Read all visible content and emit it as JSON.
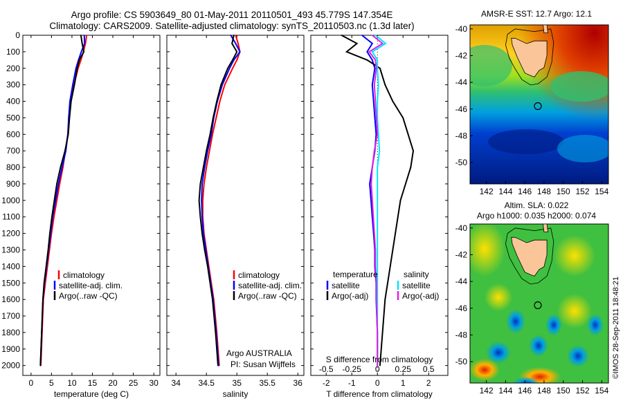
{
  "title_line1": "Argo profile: CS 5903649_80 01-May-2011 20110501_493 45.779S 147.354E",
  "title_line2": "Climatology: CARS2009. Satellite-adjusted climatology: synTS_20110503.nc (1.3d later)",
  "colors": {
    "climatology": "#ff0000",
    "satellite": "#0000ff",
    "argo": "#000000",
    "satellite_s": "#00e5ff",
    "argo_s": "#e020e0"
  },
  "chart_data": [
    {
      "type": "line",
      "xlabel": "temperature (deg C)",
      "ylabel": "",
      "xlim": [
        -2,
        31.5
      ],
      "ylim": [
        2060,
        0
      ],
      "xticks": [
        0,
        5,
        10,
        15,
        20,
        25,
        30
      ],
      "yticks": [
        0,
        100,
        200,
        300,
        400,
        500,
        600,
        700,
        800,
        900,
        1000,
        1100,
        1200,
        1300,
        1400,
        1500,
        1600,
        1700,
        1800,
        1900,
        2000
      ],
      "legend": {
        "placement": "lower-middle",
        "entries": [
          "climatology",
          "satellite-adj. clim.",
          "Argo(..raw -QC)"
        ]
      },
      "series": [
        {
          "name": "climatology",
          "color": "climatology",
          "x": [
            13.6,
            13.3,
            12.8,
            12.2,
            11.5,
            10.5,
            9.7,
            9.3,
            9.0,
            8.4,
            7.8,
            7.0,
            6.3,
            5.6,
            5.0,
            4.5,
            4.0,
            3.5,
            3.0,
            2.7,
            2.4
          ],
          "y": [
            0,
            50,
            100,
            150,
            200,
            300,
            400,
            500,
            600,
            700,
            800,
            900,
            1000,
            1100,
            1200,
            1300,
            1400,
            1500,
            1600,
            1800,
            2000
          ]
        },
        {
          "name": "satellite-adj. clim.",
          "color": "satellite",
          "x": [
            13.0,
            13.1,
            12.3,
            11.6,
            11.0,
            10.2,
            9.5,
            9.2,
            9.0,
            8.5,
            7.6,
            6.7,
            6.0,
            5.3,
            4.8,
            4.3,
            3.8,
            3.3,
            2.9,
            2.6,
            2.3
          ],
          "y": [
            0,
            50,
            100,
            150,
            200,
            300,
            400,
            500,
            600,
            700,
            800,
            900,
            1000,
            1100,
            1200,
            1300,
            1400,
            1500,
            1600,
            1800,
            2000
          ]
        },
        {
          "name": "Argo(..raw -QC)",
          "color": "argo",
          "x": [
            12.2,
            12.5,
            12.9,
            11.8,
            11.3,
            10.6,
            9.8,
            9.4,
            9.1,
            8.3,
            7.2,
            6.3,
            5.7,
            5.1,
            4.6,
            4.2,
            3.7,
            3.2,
            2.9,
            2.6,
            2.3
          ],
          "y": [
            0,
            50,
            100,
            150,
            200,
            300,
            400,
            500,
            600,
            700,
            800,
            900,
            1000,
            1100,
            1200,
            1300,
            1400,
            1500,
            1600,
            1800,
            2000
          ]
        }
      ]
    },
    {
      "type": "line",
      "xlabel": "salinity",
      "ylabel": "",
      "xlim": [
        33.85,
        36.1
      ],
      "ylim": [
        2060,
        0
      ],
      "xticks": [
        34,
        34.5,
        35,
        35.5,
        36
      ],
      "legend": {
        "placement": "lower-middle",
        "entries": [
          "climatology",
          "satellite-adj. clim.",
          "Argo(..raw -QC)"
        ]
      },
      "annotation": [
        "Argo AUSTRALIA",
        "PI: Susan Wijffels"
      ],
      "series": [
        {
          "name": "climatology",
          "color": "climatology",
          "x": [
            34.98,
            35.02,
            35.05,
            35.0,
            34.93,
            34.8,
            34.72,
            34.66,
            34.6,
            34.55,
            34.5,
            34.46,
            34.44,
            34.44,
            34.46,
            34.5,
            34.54,
            34.58,
            34.62,
            34.67,
            34.71
          ],
          "y": [
            0,
            50,
            100,
            150,
            200,
            300,
            400,
            500,
            600,
            700,
            800,
            900,
            1000,
            1100,
            1200,
            1300,
            1400,
            1500,
            1600,
            1800,
            2000
          ]
        },
        {
          "name": "satellite-adj. clim.",
          "color": "satellite",
          "x": [
            34.9,
            34.98,
            35.05,
            34.95,
            34.88,
            34.76,
            34.68,
            34.62,
            34.58,
            34.52,
            34.47,
            34.43,
            34.42,
            34.43,
            34.45,
            34.49,
            34.53,
            34.57,
            34.61,
            34.66,
            34.7
          ],
          "y": [
            0,
            50,
            100,
            150,
            200,
            300,
            400,
            500,
            600,
            700,
            800,
            900,
            1000,
            1100,
            1200,
            1300,
            1400,
            1500,
            1600,
            1800,
            2000
          ]
        },
        {
          "name": "Argo(..raw -QC)",
          "color": "argo",
          "x": [
            34.95,
            34.92,
            35.0,
            34.93,
            34.85,
            34.74,
            34.67,
            34.61,
            34.56,
            34.5,
            34.45,
            34.4,
            34.38,
            34.4,
            34.43,
            34.47,
            34.52,
            34.56,
            34.6,
            34.65,
            34.69
          ],
          "y": [
            0,
            50,
            100,
            150,
            200,
            300,
            400,
            500,
            600,
            700,
            800,
            900,
            1000,
            1100,
            1200,
            1300,
            1400,
            1500,
            1600,
            1800,
            2000
          ]
        }
      ]
    },
    {
      "type": "line",
      "xlabel": "T difference from climatology",
      "xlabel2": "S difference from climatology",
      "xlim": [
        -2.6,
        2.75
      ],
      "ylim": [
        2060,
        0
      ],
      "xticks": [
        -2,
        -1,
        0,
        1,
        2
      ],
      "x2ticks": [
        -0.5,
        -0.25,
        0,
        0.25,
        0.5
      ],
      "legend": {
        "placement": "lower-middle",
        "headers": [
          "temperature",
          "salinity"
        ],
        "entries": [
          "satellite",
          "Argo(-adj)",
          "satellite",
          "Argo(-adj)"
        ]
      },
      "series": [
        {
          "name": "temperature satellite",
          "color": "satellite",
          "x": [
            -0.6,
            -0.2,
            -0.4,
            -0.2,
            -0.1,
            -0.2,
            -0.15,
            -0.1,
            -0.05,
            -0.1,
            -0.2,
            -0.3,
            -0.25,
            -0.2,
            -0.15,
            -0.1,
            -0.1,
            -0.05,
            -0.05,
            0,
            0
          ],
          "y": [
            0,
            50,
            100,
            150,
            200,
            300,
            400,
            500,
            600,
            700,
            800,
            900,
            1000,
            1100,
            1200,
            1300,
            1400,
            1500,
            1600,
            1800,
            2000
          ]
        },
        {
          "name": "temperature Argo(-adj)",
          "color": "argo",
          "x": [
            -1.4,
            -0.8,
            -1.2,
            -0.4,
            0.1,
            0.3,
            0.6,
            1.0,
            1.2,
            1.4,
            1.3,
            1.1,
            0.9,
            0.8,
            0.7,
            0.6,
            0.5,
            0.4,
            0.3,
            0.2,
            0.1
          ],
          "y": [
            0,
            50,
            100,
            150,
            200,
            300,
            400,
            500,
            600,
            700,
            800,
            900,
            1000,
            1100,
            1200,
            1300,
            1400,
            1500,
            1600,
            1800,
            2000
          ]
        },
        {
          "name": "salinity satellite",
          "color": "satellite_s",
          "x": [
            -0.02,
            0.08,
            -0.05,
            0.0,
            0.0,
            0.01,
            0.0,
            0.0,
            0.01,
            0.02,
            0.0,
            0.0,
            0.0,
            0.0,
            0.0,
            0.0,
            0.0,
            0.0,
            0.0,
            0.0,
            0.0
          ],
          "y": [
            0,
            50,
            100,
            150,
            200,
            300,
            400,
            500,
            600,
            700,
            800,
            900,
            1000,
            1100,
            1200,
            1300,
            1400,
            1500,
            1600,
            1800,
            2000
          ]
        },
        {
          "name": "salinity Argo(-adj)",
          "color": "argo_s",
          "x": [
            -0.05,
            0.05,
            -0.08,
            -0.02,
            -0.01,
            -0.03,
            -0.02,
            -0.01,
            0.0,
            -0.03,
            -0.05,
            -0.06,
            -0.05,
            -0.04,
            -0.03,
            -0.02,
            -0.02,
            -0.01,
            -0.01,
            0.0,
            0.0
          ],
          "y": [
            0,
            50,
            100,
            150,
            200,
            300,
            400,
            500,
            600,
            700,
            800,
            900,
            1000,
            1100,
            1200,
            1300,
            1400,
            1500,
            1600,
            1800,
            2000
          ]
        }
      ]
    },
    {
      "type": "heatmap",
      "title": "AMSR-E SST: 12.7 Argo: 12.1",
      "xlim": [
        140.3,
        154.7
      ],
      "ylim": [
        -51.6,
        -39.7
      ],
      "xticks": [
        142,
        144,
        146,
        148,
        150,
        152,
        154
      ],
      "yticks": [
        -40,
        -42,
        -44,
        -46,
        -48,
        -50
      ],
      "marker": {
        "lon": 147.354,
        "lat": -45.779
      }
    },
    {
      "type": "heatmap",
      "title_line1": "Altim. SLA: 0.022",
      "title_line2": "Argo h1000: 0.035 h2000: 0.074",
      "xlim": [
        140.3,
        154.7
      ],
      "ylim": [
        -51.6,
        -39.7
      ],
      "xticks": [
        142,
        144,
        146,
        148,
        150,
        152,
        154
      ],
      "yticks": [
        -40,
        -42,
        -44,
        -46,
        -48,
        -50
      ],
      "marker": {
        "lon": 147.354,
        "lat": -45.779
      }
    }
  ],
  "credit": "©IMOS 28-Sep-2011 18:48:21"
}
